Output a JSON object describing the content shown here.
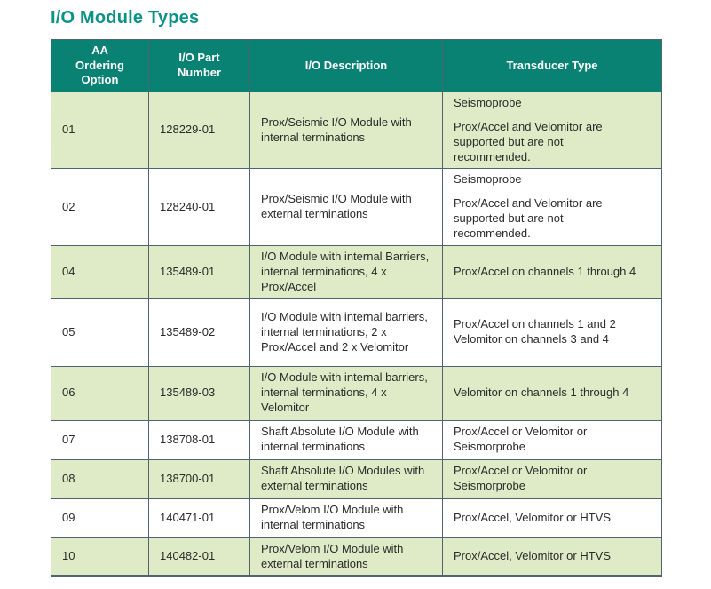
{
  "page": {
    "title": "I/O Module Types"
  },
  "colors": {
    "title_text": "#0A9488",
    "header_bg": "#0A8273",
    "header_text": "#FFFFFF",
    "row_alt_bg": "#DFEAC6",
    "row_bg": "#FFFFFF",
    "border": "#51636E",
    "body_text": "#2B2B2B"
  },
  "table": {
    "columns": [
      "AA\nOrdering\nOption",
      "I/O Part\nNumber",
      "I/O Description",
      "Transducer Type"
    ],
    "rows": [
      {
        "option": "01",
        "part": "128229-01",
        "description": "Prox/Seismic I/O Module with internal terminations",
        "transducer": [
          "Seismoprobe",
          "Prox/Accel and Velomitor are\nsupported but are not\nrecommended."
        ]
      },
      {
        "option": "02",
        "part": "128240-01",
        "description": "Prox/Seismic I/O Module with external terminations",
        "transducer": [
          "Seismoprobe",
          "Prox/Accel and Velomitor are\nsupported but are not\nrecommended."
        ]
      },
      {
        "option": "04",
        "part": "135489-01",
        "description": "I/O Module with internal Barriers, internal terminations, 4 x Prox/Accel",
        "transducer": [
          "Prox/Accel on channels 1 through 4"
        ]
      },
      {
        "option": "05",
        "part": "135489-02",
        "description": "I/O Module with internal barriers, internal terminations, 2 x Prox/Accel and 2 x Velomitor",
        "transducer": [
          "Prox/Accel on channels 1 and 2\nVelomitor on channels 3 and 4"
        ]
      },
      {
        "option": "06",
        "part": "135489-03",
        "description": "I/O Module with internal barriers, internal terminations, 4 x Velomitor",
        "transducer": [
          "Velomitor on channels 1 through 4"
        ]
      },
      {
        "option": "07",
        "part": "138708-01",
        "description": "Shaft Absolute I/O Module with internal terminations",
        "transducer": [
          "Prox/Accel or Velomitor or\nSeismorprobe"
        ]
      },
      {
        "option": "08",
        "part": "138700-01",
        "description": "Shaft Absolute I/O Modules with external terminations",
        "transducer": [
          "Prox/Accel or Velomitor or\nSeismorprobe"
        ]
      },
      {
        "option": "09",
        "part": "140471-01",
        "description": "Prox/Velom I/O Module with internal terminations",
        "transducer": [
          "Prox/Accel, Velomitor or HTVS"
        ]
      },
      {
        "option": "10",
        "part": "140482-01",
        "description": "Prox/Velom I/O Module with external terminations",
        "transducer": [
          "Prox/Accel, Velomitor or HTVS"
        ]
      }
    ]
  }
}
